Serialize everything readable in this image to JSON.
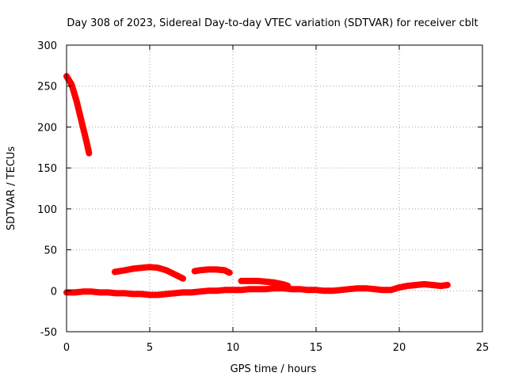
{
  "chart_data": {
    "type": "line",
    "title": "Day 308 of 2023, Sidereal Day-to-day VTEC variation (SDTVAR) for receiver cblt",
    "xlabel": "GPS time / hours",
    "ylabel": "SDTVAR / TECUs",
    "xlim": [
      0,
      25
    ],
    "ylim": [
      -50,
      300
    ],
    "xticks": [
      0,
      5,
      10,
      15,
      20,
      25
    ],
    "yticks": [
      -50,
      0,
      50,
      100,
      150,
      200,
      250,
      300
    ],
    "grid": true,
    "color": "#ff0000",
    "series": [
      {
        "x": [
          0.0,
          0.3,
          0.6,
          0.9,
          1.2,
          1.35
        ],
        "y": [
          262,
          252,
          232,
          207,
          182,
          168
        ]
      },
      {
        "x": [
          0.0,
          0.5,
          1.0,
          1.5,
          2.0,
          2.5,
          3.0,
          3.5,
          4.0,
          4.5,
          5.0,
          5.5,
          6.0,
          6.5,
          7.0,
          7.5,
          8.0,
          8.5,
          9.0,
          9.5,
          10.0,
          10.5,
          11.0,
          11.5,
          12.0,
          12.5,
          13.0,
          13.5,
          14.0,
          14.5,
          15.0,
          15.5,
          16.0,
          16.5,
          17.0,
          17.5,
          18.0,
          18.5,
          19.0,
          19.5,
          20.0,
          20.5,
          21.0,
          21.5,
          22.0,
          22.5,
          22.9
        ],
        "y": [
          -2,
          -2,
          -1,
          -1,
          -2,
          -2,
          -3,
          -3,
          -4,
          -4,
          -5,
          -5,
          -4,
          -3,
          -2,
          -2,
          -1,
          0,
          0,
          1,
          1,
          1,
          2,
          2,
          2,
          3,
          3,
          2,
          2,
          1,
          1,
          0,
          0,
          1,
          2,
          3,
          3,
          2,
          1,
          1,
          4,
          6,
          7,
          8,
          7,
          6,
          7
        ]
      },
      {
        "x": [
          2.9,
          3.5,
          4.0,
          4.5,
          5.0,
          5.5,
          6.0,
          6.5,
          7.0
        ],
        "y": [
          23,
          25,
          27,
          28,
          29,
          28,
          25,
          20,
          15
        ]
      },
      {
        "x": [
          7.7,
          8.0,
          8.5,
          9.0,
          9.5,
          9.8
        ],
        "y": [
          24,
          25,
          26,
          26,
          25,
          22
        ]
      },
      {
        "x": [
          10.5,
          11.0,
          11.5,
          12.0,
          12.5,
          13.0,
          13.3
        ],
        "y": [
          12,
          12,
          12,
          11,
          10,
          8,
          6
        ]
      }
    ]
  }
}
